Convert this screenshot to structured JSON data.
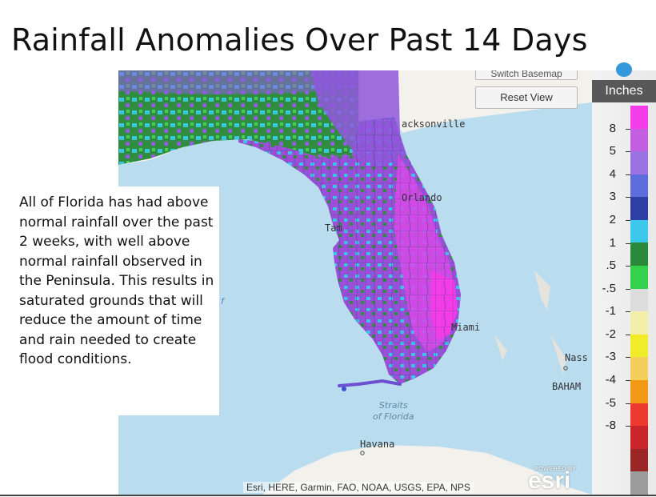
{
  "slide": {
    "title": "Rainfall Anomalies Over Past 14 Days",
    "callout": "All of Florida has had above normal rainfall over the past 2 weeks, with well above normal rainfall observed in the Peninsula. This results in saturated grounds that will reduce the amount of time and rain needed to create flood conditions."
  },
  "map": {
    "buttons": {
      "switch_basemap": "Switch Basemap",
      "reset_view": "Reset View"
    },
    "places": {
      "jacksonville": "acksonville",
      "orlando": "Orlando",
      "tampa": "Tam",
      "miami": "Miami",
      "nassau": "Nass",
      "bahamas": "BAHAM",
      "havana": "Havana"
    },
    "water": {
      "straits_line1": "Straits",
      "straits_line2": "of Florida",
      "gulf_fragment": "f"
    },
    "attribution": "Esri, HERE, Garmin, FAO, NOAA, USGS, EPA, NPS",
    "esri_powered": "POWERED BY",
    "esri_logo": "esri",
    "help_label": "?",
    "colors": {
      "water": "#b9dcef",
      "land": "#f2f1ec",
      "state_border": "#9a9a9a",
      "county_line": "#4a4a7a",
      "purple": "#9b4fd8",
      "magenta": "#f13ce8",
      "cyan": "#3cc3e8",
      "green": "#2d8f3c"
    }
  },
  "legend": {
    "title": "Inches",
    "labels": [
      "8",
      "5",
      "4",
      "3",
      "2",
      "1",
      ".5",
      "-.5",
      "-1",
      "-2",
      "-3",
      "-4",
      "-5",
      "-8"
    ],
    "colors": [
      "#f13ce8",
      "#c25fe0",
      "#9a72e2",
      "#5f6cdb",
      "#2d3fa3",
      "#3cc8ea",
      "#2a8a3a",
      "#34d24c",
      "#dcdcdc",
      "#f3efaa",
      "#f0ec28",
      "#f4cf5c",
      "#f29a18",
      "#ec3b2e",
      "#c8262a",
      "#9a2626",
      "#9c9c9c"
    ]
  }
}
